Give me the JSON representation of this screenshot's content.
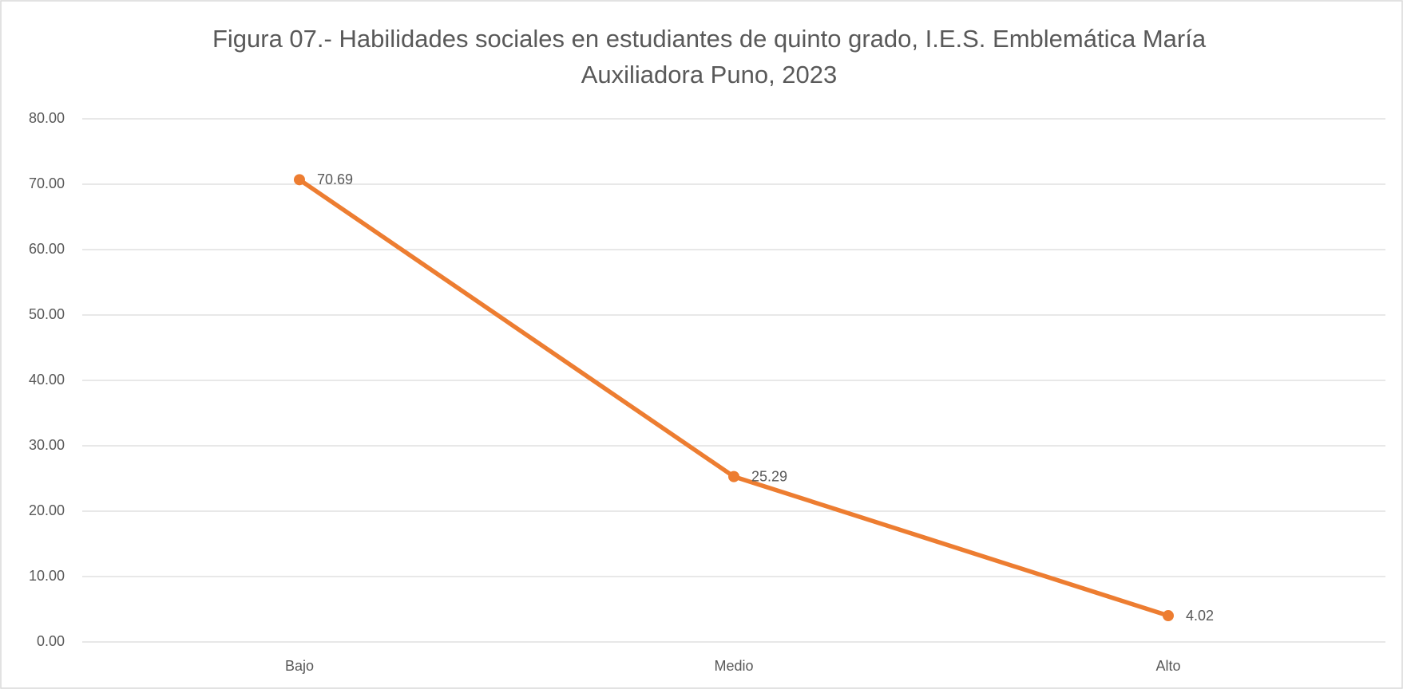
{
  "chart_data": {
    "type": "line",
    "title": [
      "Figura 07.- Habilidades sociales en estudiantes de quinto grado, I.E.S. Emblemática María",
      "Auxiliadora Puno, 2023"
    ],
    "categories": [
      "Bajo",
      "Medio",
      "Alto"
    ],
    "values": [
      70.69,
      25.29,
      4.02
    ],
    "color": "#ed7d31",
    "ylim": [
      0,
      80
    ],
    "yticks": [
      {
        "value": 0,
        "label": "0.00"
      },
      {
        "value": 10,
        "label": "10.00"
      },
      {
        "value": 20,
        "label": "20.00"
      },
      {
        "value": 30,
        "label": "30.00"
      },
      {
        "value": 40,
        "label": "40.00"
      },
      {
        "value": 50,
        "label": "50.00"
      },
      {
        "value": 60,
        "label": "60.00"
      },
      {
        "value": 70,
        "label": "70.00"
      },
      {
        "value": 80,
        "label": "80.00"
      }
    ],
    "grid": true
  }
}
